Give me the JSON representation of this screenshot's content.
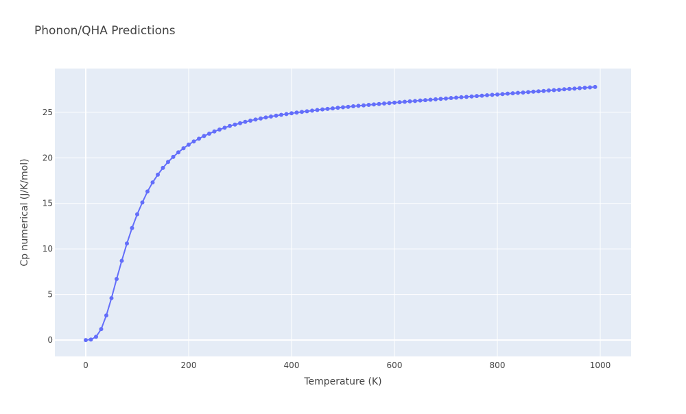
{
  "chart_data": {
    "type": "line",
    "title": "Phonon/QHA Predictions",
    "xlabel": "Temperature (K)",
    "ylabel": "Cp numerical (J/K/mol)",
    "xlim": [
      -60,
      1060
    ],
    "ylim": [
      -1.8,
      29.8
    ],
    "x_ticks": [
      0,
      200,
      400,
      600,
      800,
      1000
    ],
    "y_ticks": [
      0,
      5,
      10,
      15,
      20,
      25
    ],
    "grid": true,
    "legend": "none",
    "colors": {
      "plot_background": "#e5ecf6",
      "grid": "#ffffff",
      "series": "#636efa",
      "text": "#444444"
    },
    "series": [
      {
        "mode": "lines+markers",
        "x": [
          0,
          10,
          20,
          30,
          40,
          50,
          60,
          70,
          80,
          90,
          100,
          110,
          120,
          130,
          140,
          150,
          160,
          170,
          180,
          190,
          200,
          210,
          220,
          230,
          240,
          250,
          260,
          270,
          280,
          290,
          300,
          310,
          320,
          330,
          340,
          350,
          360,
          370,
          380,
          390,
          400,
          410,
          420,
          430,
          440,
          450,
          460,
          470,
          480,
          490,
          500,
          510,
          520,
          530,
          540,
          550,
          560,
          570,
          580,
          590,
          600,
          610,
          620,
          630,
          640,
          650,
          660,
          670,
          680,
          690,
          700,
          710,
          720,
          730,
          740,
          750,
          760,
          770,
          780,
          790,
          800,
          810,
          820,
          830,
          840,
          850,
          860,
          870,
          880,
          890,
          900,
          910,
          920,
          930,
          940,
          950,
          960,
          970,
          980,
          990
        ],
        "y": [
          0,
          0.05,
          0.35,
          1.2,
          2.7,
          4.6,
          6.7,
          8.7,
          10.6,
          12.3,
          13.8,
          15.1,
          16.3,
          17.3,
          18.15,
          18.9,
          19.55,
          20.1,
          20.6,
          21.05,
          21.45,
          21.8,
          22.1,
          22.4,
          22.65,
          22.9,
          23.1,
          23.3,
          23.5,
          23.65,
          23.8,
          23.95,
          24.08,
          24.2,
          24.32,
          24.43,
          24.53,
          24.63,
          24.72,
          24.81,
          24.89,
          24.97,
          25.04,
          25.11,
          25.18,
          25.25,
          25.31,
          25.37,
          25.43,
          25.49,
          25.55,
          25.6,
          25.66,
          25.71,
          25.76,
          25.81,
          25.86,
          25.91,
          25.96,
          26.01,
          26.06,
          26.1,
          26.15,
          26.2,
          26.24,
          26.29,
          26.33,
          26.38,
          26.42,
          26.47,
          26.51,
          26.56,
          26.6,
          26.65,
          26.69,
          26.73,
          26.78,
          26.82,
          26.87,
          26.91,
          26.95,
          27.0,
          27.04,
          27.08,
          27.13,
          27.17,
          27.21,
          27.26,
          27.3,
          27.34,
          27.39,
          27.43,
          27.47,
          27.52,
          27.56,
          27.6,
          27.65,
          27.69,
          27.73,
          27.78
        ]
      }
    ]
  }
}
